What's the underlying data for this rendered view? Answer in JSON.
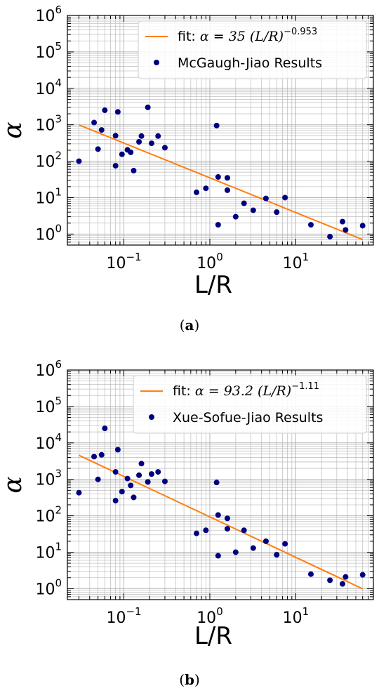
{
  "chart_data": [
    {
      "type": "scatter",
      "panel_caption": {
        "open": "(",
        "letter": "a",
        "close": ")"
      },
      "xlabel": "L/R",
      "ylabel": "α",
      "xscale": "log",
      "yscale": "log",
      "xlim": [
        0.022,
        80
      ],
      "ylim": [
        0.5,
        1000000
      ],
      "x_ticks": [
        {
          "base": "10",
          "exp": "−1",
          "value": 0.1
        },
        {
          "base": "10",
          "exp": "0",
          "value": 1
        },
        {
          "base": "10",
          "exp": "1",
          "value": 10
        }
      ],
      "y_ticks": [
        {
          "base": "10",
          "exp": "0",
          "value": 1
        },
        {
          "base": "10",
          "exp": "1",
          "value": 10
        },
        {
          "base": "10",
          "exp": "2",
          "value": 100
        },
        {
          "base": "10",
          "exp": "3",
          "value": 1000
        },
        {
          "base": "10",
          "exp": "4",
          "value": 10000
        },
        {
          "base": "10",
          "exp": "5",
          "value": 100000
        },
        {
          "base": "10",
          "exp": "6",
          "value": 1000000
        }
      ],
      "grid": true,
      "legend_position": "top-right",
      "colors": {
        "fit": "#ff7f0e",
        "points": "#000080",
        "grid": "#b0b0b0"
      },
      "fit": {
        "name_prefix": "fit: ",
        "name_eq": "α = 35 (L/R)",
        "name_exp": "−0.953",
        "A": 35,
        "b": -0.953,
        "x_range": [
          0.03,
          60
        ]
      },
      "series": [
        {
          "name": "McGaugh-Jiao Results",
          "points": [
            [
              0.03,
              100
            ],
            [
              0.045,
              1150
            ],
            [
              0.05,
              215
            ],
            [
              0.055,
              720
            ],
            [
              0.06,
              2500
            ],
            [
              0.08,
              75
            ],
            [
              0.08,
              500
            ],
            [
              0.085,
              2250
            ],
            [
              0.095,
              155
            ],
            [
              0.11,
              205
            ],
            [
              0.12,
              175
            ],
            [
              0.13,
              55
            ],
            [
              0.15,
              340
            ],
            [
              0.16,
              490
            ],
            [
              0.19,
              3000
            ],
            [
              0.21,
              310
            ],
            [
              0.25,
              490
            ],
            [
              0.3,
              235
            ],
            [
              0.7,
              14
            ],
            [
              0.9,
              18
            ],
            [
              1.2,
              950
            ],
            [
              1.25,
              1.8
            ],
            [
              1.25,
              37
            ],
            [
              1.6,
              35
            ],
            [
              1.6,
              16
            ],
            [
              2,
              3
            ],
            [
              2.5,
              7
            ],
            [
              3.2,
              4.5
            ],
            [
              4.5,
              9.5
            ],
            [
              6,
              4
            ],
            [
              7.5,
              10
            ],
            [
              15,
              1.8
            ],
            [
              25,
              0.85
            ],
            [
              35,
              2.2
            ],
            [
              38,
              1.3
            ],
            [
              60,
              1.7
            ]
          ]
        }
      ]
    },
    {
      "type": "scatter",
      "panel_caption": {
        "open": "(",
        "letter": "b",
        "close": ")"
      },
      "xlabel": "L/R",
      "ylabel": "α",
      "xscale": "log",
      "yscale": "log",
      "xlim": [
        0.022,
        80
      ],
      "ylim": [
        0.5,
        1000000
      ],
      "x_ticks": [
        {
          "base": "10",
          "exp": "−1",
          "value": 0.1
        },
        {
          "base": "10",
          "exp": "0",
          "value": 1
        },
        {
          "base": "10",
          "exp": "1",
          "value": 10
        }
      ],
      "y_ticks": [
        {
          "base": "10",
          "exp": "0",
          "value": 1
        },
        {
          "base": "10",
          "exp": "1",
          "value": 10
        },
        {
          "base": "10",
          "exp": "2",
          "value": 100
        },
        {
          "base": "10",
          "exp": "3",
          "value": 1000
        },
        {
          "base": "10",
          "exp": "4",
          "value": 10000
        },
        {
          "base": "10",
          "exp": "5",
          "value": 100000
        },
        {
          "base": "10",
          "exp": "6",
          "value": 1000000
        }
      ],
      "grid": true,
      "legend_position": "top-right",
      "colors": {
        "fit": "#ff7f0e",
        "points": "#000080",
        "grid": "#b0b0b0"
      },
      "fit": {
        "name_prefix": "fit: ",
        "name_eq": "α = 93.2 (L/R)",
        "name_exp": "−1.11",
        "A": 93.2,
        "b": -1.11,
        "x_range": [
          0.03,
          60
        ]
      },
      "series": [
        {
          "name": "Xue-Sofue-Jiao Results",
          "points": [
            [
              0.03,
              430
            ],
            [
              0.045,
              4200
            ],
            [
              0.05,
              1000
            ],
            [
              0.055,
              4700
            ],
            [
              0.06,
              25000
            ],
            [
              0.08,
              260
            ],
            [
              0.08,
              1600
            ],
            [
              0.085,
              6500
            ],
            [
              0.095,
              460
            ],
            [
              0.11,
              1050
            ],
            [
              0.12,
              680
            ],
            [
              0.13,
              320
            ],
            [
              0.15,
              1300
            ],
            [
              0.16,
              2700
            ],
            [
              0.19,
              850
            ],
            [
              0.21,
              1400
            ],
            [
              0.25,
              1600
            ],
            [
              0.3,
              880
            ],
            [
              0.7,
              33
            ],
            [
              0.9,
              40
            ],
            [
              1.2,
              820
            ],
            [
              1.25,
              8
            ],
            [
              1.25,
              105
            ],
            [
              1.6,
              85
            ],
            [
              1.6,
              44
            ],
            [
              2,
              10
            ],
            [
              2.5,
              40
            ],
            [
              3.2,
              13
            ],
            [
              4.5,
              20
            ],
            [
              6,
              8.5
            ],
            [
              7.5,
              17
            ],
            [
              15,
              2.5
            ],
            [
              25,
              1.7
            ],
            [
              35,
              1.35
            ],
            [
              38,
              2.1
            ],
            [
              60,
              2.4
            ]
          ]
        }
      ]
    }
  ]
}
